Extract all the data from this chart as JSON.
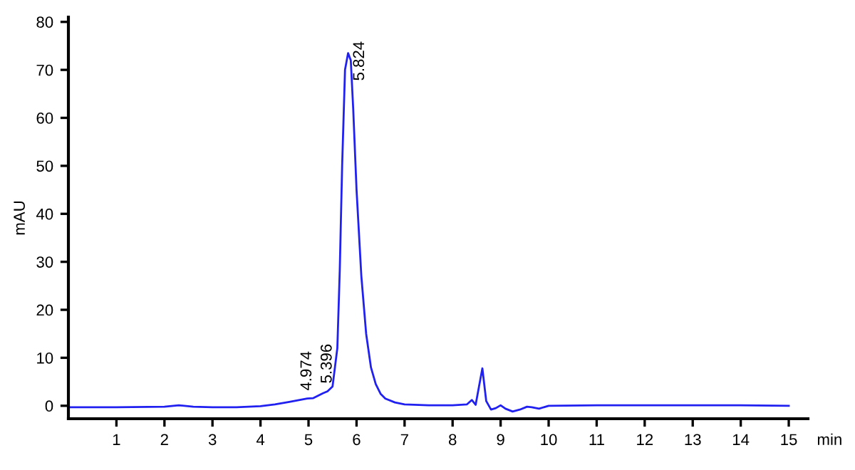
{
  "chart_data": {
    "type": "line",
    "xlabel": "min",
    "ylabel": "mAU",
    "xlim": [
      0,
      15.4
    ],
    "ylim": [
      -2.7,
      81
    ],
    "xticks": [
      1,
      2,
      3,
      4,
      5,
      6,
      7,
      8,
      9,
      10,
      11,
      12,
      13,
      14,
      15
    ],
    "yticks": [
      0,
      10,
      20,
      30,
      40,
      50,
      60,
      70,
      80
    ],
    "grid": false,
    "marker": "none",
    "line_style": "solid",
    "series": [
      {
        "color": "#2020f0",
        "x": [
          0,
          1,
          2,
          2.3,
          2.6,
          3,
          3.5,
          4,
          4.3,
          4.6,
          4.974,
          5.1,
          5.3,
          5.396,
          5.5,
          5.6,
          5.65,
          5.7,
          5.76,
          5.824,
          5.88,
          5.93,
          6.0,
          6.1,
          6.2,
          6.3,
          6.4,
          6.5,
          6.6,
          6.8,
          7.0,
          7.5,
          8.0,
          8.3,
          8.4,
          8.48,
          8.55,
          8.62,
          8.7,
          8.8,
          8.9,
          9.0,
          9.1,
          9.25,
          9.4,
          9.55,
          9.65,
          9.8,
          10.0,
          11,
          12,
          13,
          14,
          15
        ],
        "values": [
          -0.3,
          -0.3,
          -0.2,
          0.1,
          -0.2,
          -0.3,
          -0.3,
          -0.1,
          0.3,
          0.8,
          1.5,
          1.6,
          2.6,
          3.0,
          4.0,
          12,
          28,
          50,
          70,
          73.5,
          72,
          62,
          45,
          27,
          15,
          8,
          4.5,
          2.5,
          1.5,
          0.7,
          0.3,
          0.1,
          0.1,
          0.3,
          1.2,
          0.2,
          4,
          7.8,
          1,
          -0.8,
          -0.5,
          0.1,
          -0.6,
          -1.2,
          -0.8,
          -0.2,
          -0.3,
          -0.6,
          0,
          0.1,
          0.1,
          0.1,
          0.1,
          0
        ]
      }
    ],
    "annotations": [
      {
        "text": "4.974",
        "x": 4.974,
        "y": 1.5
      },
      {
        "text": "5.396",
        "x": 5.396,
        "y": 3.0
      },
      {
        "text": "5.824",
        "x": 5.824,
        "y": 73.5
      }
    ]
  }
}
